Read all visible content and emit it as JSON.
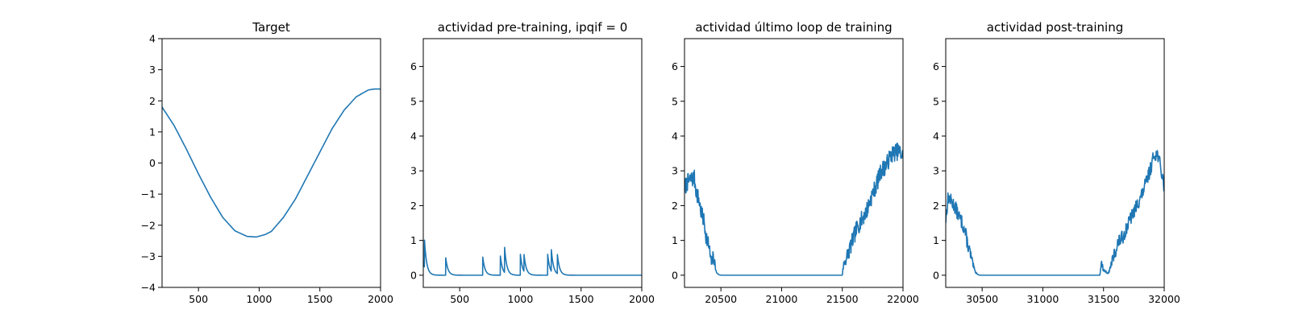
{
  "figure": {
    "background": "#ffffff",
    "line_color": "#1f77b4",
    "axis_color": "#000000"
  },
  "chart_data": [
    {
      "type": "line",
      "title": "Target",
      "xlabel": "",
      "ylabel": "",
      "xlim": [
        200,
        2000
      ],
      "ylim": [
        -4,
        4
      ],
      "xticks": [
        500,
        1000,
        1500,
        2000
      ],
      "xtick_labels": [
        "500",
        "1000",
        "1500",
        "2000"
      ],
      "yticks": [
        -4,
        -3,
        -2,
        -1,
        0,
        1,
        2,
        3,
        4
      ],
      "ytick_labels": [
        "−4",
        "−3",
        "−2",
        "−1",
        "0",
        "1",
        "2",
        "3",
        "4"
      ],
      "series": [
        {
          "x": [
            200,
            300,
            400,
            500,
            600,
            700,
            800,
            900,
            975,
            1050,
            1100,
            1200,
            1300,
            1400,
            1500,
            1600,
            1700,
            1800,
            1900,
            1950,
            2000
          ],
          "y": [
            1.8,
            1.2,
            0.45,
            -0.35,
            -1.1,
            -1.75,
            -2.18,
            -2.36,
            -2.38,
            -2.3,
            -2.2,
            -1.75,
            -1.15,
            -0.4,
            0.35,
            1.1,
            1.7,
            2.13,
            2.35,
            2.38,
            2.38
          ]
        }
      ]
    },
    {
      "type": "line",
      "title": "actividad pre-training, ipqif = 0",
      "xlabel": "",
      "ylabel": "",
      "xlim": [
        200,
        2000
      ],
      "ylim": [
        -0.35,
        6.8
      ],
      "xticks": [
        500,
        1000,
        1500,
        2000
      ],
      "xtick_labels": [
        "500",
        "1000",
        "1500",
        "2000"
      ],
      "yticks": [
        0,
        1,
        2,
        3,
        4,
        5,
        6
      ],
      "ytick_labels": [
        "0",
        "1",
        "2",
        "3",
        "4",
        "5",
        "6"
      ],
      "series": [
        {
          "baseline": 0,
          "decay": 18,
          "x_end": 2000,
          "spikes": [
            [
              200,
              0.4
            ],
            [
              210,
              0.78
            ],
            [
              385,
              0.5
            ],
            [
              690,
              0.52
            ],
            [
              835,
              0.55
            ],
            [
              870,
              0.72
            ],
            [
              1000,
              0.6
            ],
            [
              1030,
              0.48
            ],
            [
              1225,
              0.6
            ],
            [
              1255,
              0.62
            ],
            [
              1305,
              0.55
            ]
          ]
        }
      ]
    },
    {
      "type": "line",
      "title": "actividad último loop de training",
      "xlabel": "",
      "ylabel": "",
      "xlim": [
        20200,
        22000
      ],
      "ylim": [
        -0.35,
        6.8
      ],
      "xticks": [
        20500,
        21000,
        21500,
        22000
      ],
      "xtick_labels": [
        "20500",
        "21000",
        "21500",
        "22000"
      ],
      "yticks": [
        0,
        1,
        2,
        3,
        4,
        5,
        6
      ],
      "ytick_labels": [
        "0",
        "1",
        "2",
        "3",
        "4",
        "5",
        "6"
      ],
      "series": [
        {
          "noise_seed": 7,
          "noise_amp": 0.25,
          "x": [
            20200,
            20220,
            20250,
            20280,
            20300,
            20320,
            20340,
            20360,
            20380,
            20400,
            20420,
            20440,
            20460,
            20480,
            20500,
            20550,
            21000,
            21500,
            21510,
            21540,
            21580,
            21620,
            21660,
            21700,
            21740,
            21780,
            21820,
            21860,
            21900,
            21940,
            21970,
            22000
          ],
          "y": [
            2.5,
            2.65,
            2.75,
            2.8,
            2.35,
            2.15,
            1.75,
            1.55,
            1.1,
            0.85,
            0.35,
            0.55,
            0.1,
            0.02,
            0,
            0,
            0,
            0,
            0.3,
            0.55,
            0.95,
            1.35,
            1.6,
            1.85,
            2.25,
            2.6,
            3.0,
            3.15,
            3.45,
            3.55,
            3.55,
            3.4
          ]
        }
      ]
    },
    {
      "type": "line",
      "title": "actividad post-training",
      "xlabel": "",
      "ylabel": "",
      "xlim": [
        30200,
        32000
      ],
      "ylim": [
        -0.35,
        6.8
      ],
      "xticks": [
        30500,
        31000,
        31500,
        32000
      ],
      "xtick_labels": [
        "30500",
        "31000",
        "31500",
        "32000"
      ],
      "yticks": [
        0,
        1,
        2,
        3,
        4,
        5,
        6
      ],
      "ytick_labels": [
        "0",
        "1",
        "2",
        "3",
        "4",
        "5",
        "6"
      ],
      "series": [
        {
          "noise_seed": 13,
          "noise_amp": 0.2,
          "x": [
            30200,
            30220,
            30250,
            30280,
            30300,
            30330,
            30360,
            30380,
            30400,
            30420,
            30440,
            30460,
            30480,
            30500,
            30550,
            31000,
            31470,
            31480,
            31500,
            31540,
            31580,
            31620,
            31660,
            31700,
            31740,
            31780,
            31820,
            31860,
            31890,
            31920,
            31950,
            31980,
            32000
          ],
          "y": [
            1.6,
            2.25,
            2.1,
            1.95,
            1.75,
            1.55,
            1.25,
            0.9,
            0.65,
            0.35,
            0.12,
            0.03,
            0,
            0,
            0,
            0,
            0,
            0.38,
            0.15,
            0.05,
            0.5,
            0.95,
            1.1,
            1.45,
            1.75,
            2.05,
            2.35,
            2.75,
            3.1,
            3.5,
            3.45,
            2.9,
            2.55
          ]
        }
      ]
    }
  ]
}
